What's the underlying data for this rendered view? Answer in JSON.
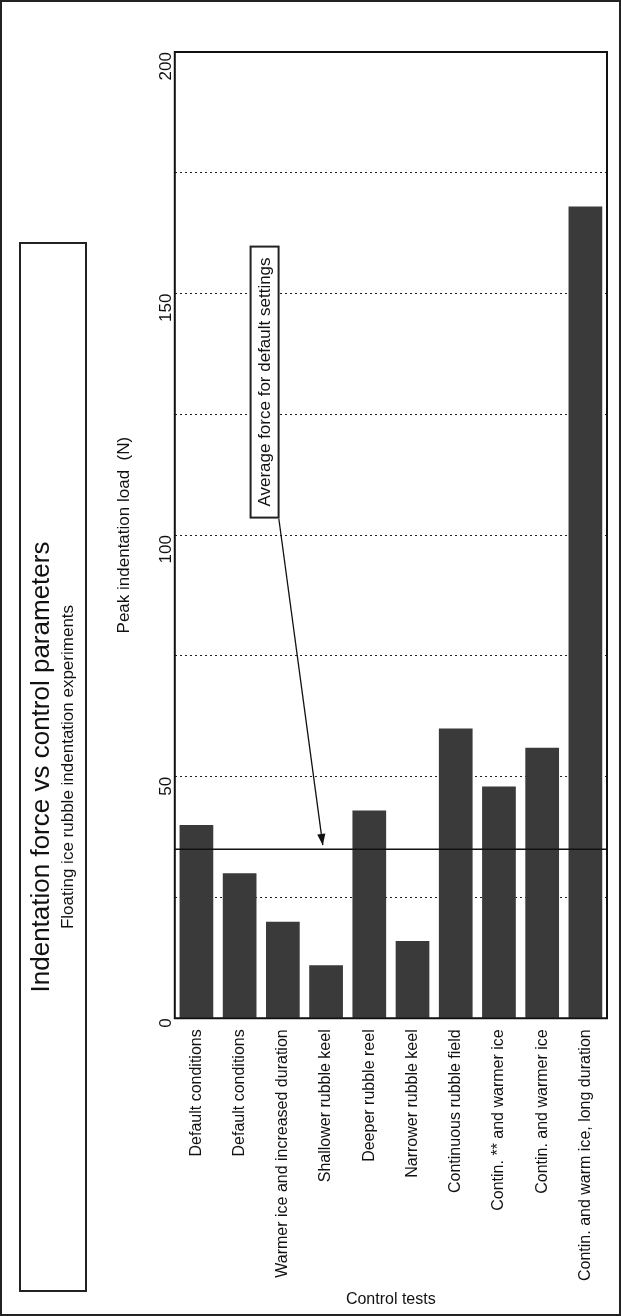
{
  "chart_data": {
    "type": "bar",
    "title": "Indentation force vs control parameters",
    "subtitle": "Floating ice rubble indentation experiments",
    "ylabel": "Peak indentation load  (N)",
    "xlabel": "Control tests",
    "categories": [
      "Default conditions",
      "Default conditions",
      "Warmer ice and increased duration",
      "Shallower rubble keel",
      "Deeper rubble reel",
      "Narrower rubble keel",
      "Continuous rubble field",
      "Contin. ** and warmer ice",
      "Contin. and warmer ice",
      "Contin. and warm ice, long duration"
    ],
    "values": [
      40,
      30,
      20,
      11,
      43,
      16,
      60,
      48,
      56,
      168
    ],
    "color": "#3a3a3a",
    "ylim": [
      0,
      200
    ],
    "yticks": [
      0,
      {
        "value": 25,
        "label": null
      },
      50,
      {
        "value": 75,
        "label": null
      },
      100,
      {
        "value": 125,
        "label": null
      },
      150,
      {
        "value": 175,
        "label": null
      },
      200
    ],
    "grid": "y",
    "ref_lines": [
      {
        "axis": "y",
        "value": 35,
        "label": "Average force for default settings"
      }
    ]
  }
}
